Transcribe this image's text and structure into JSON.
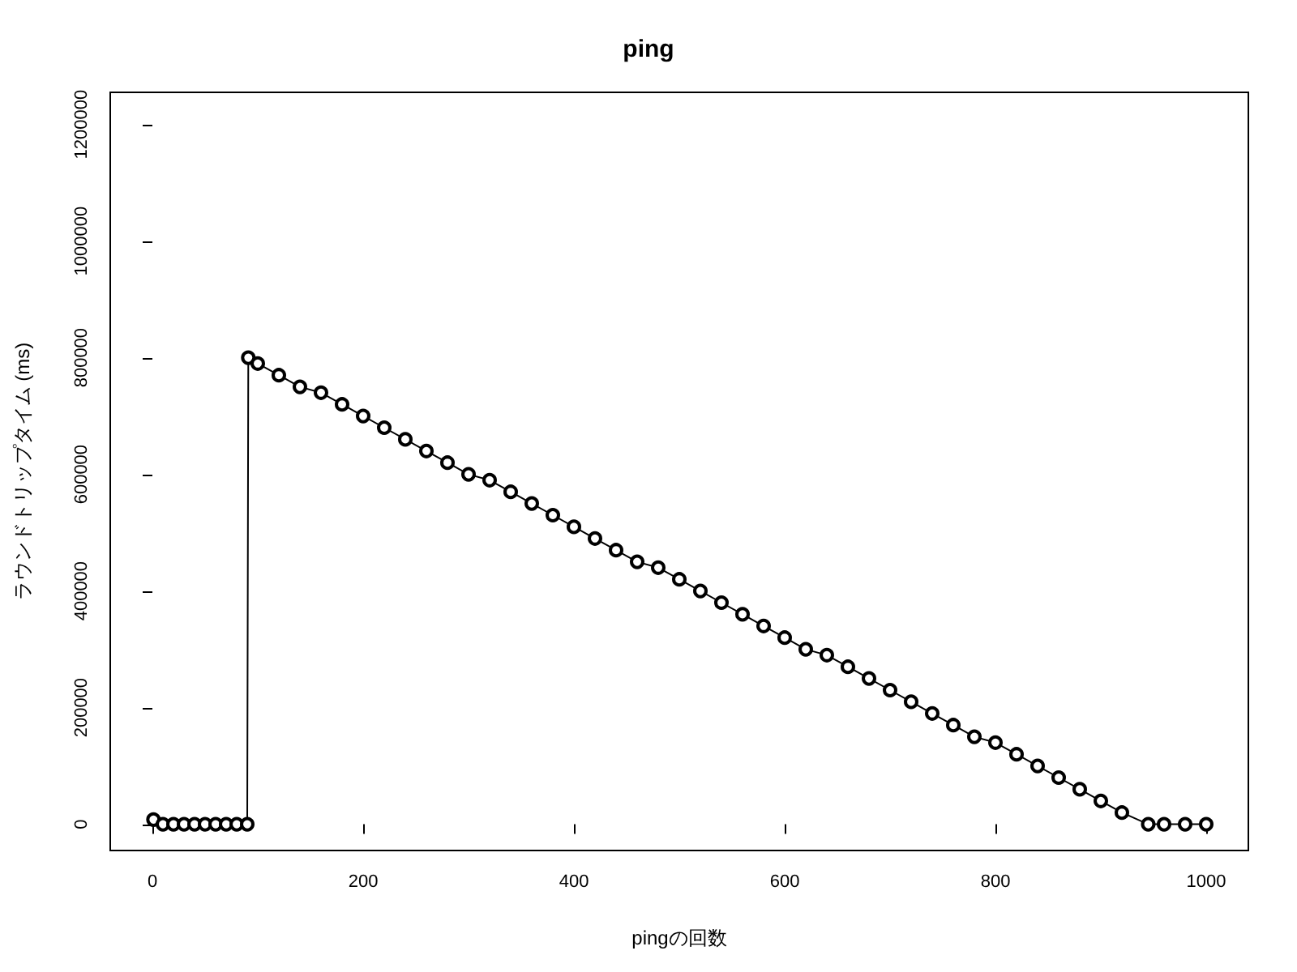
{
  "chart_data": {
    "type": "line",
    "title": "ping",
    "xlabel": "pingの回数",
    "ylabel": "ラウンドトリップタイム (ms)",
    "xlim": [
      -40,
      1040
    ],
    "xticks": [
      0,
      200,
      400,
      600,
      800,
      1000
    ],
    "ylim": [
      -45000,
      1255000
    ],
    "yticks": [
      0,
      200000,
      400000,
      600000,
      800000,
      1000000,
      1200000
    ],
    "grid": false,
    "marker": "circle",
    "line_style": "solid",
    "series": [
      {
        "color": "#000000",
        "x": [
          1,
          10,
          20,
          30,
          40,
          50,
          60,
          70,
          80,
          90,
          91,
          100,
          120,
          140,
          160,
          180,
          200,
          220,
          240,
          260,
          280,
          300,
          320,
          340,
          360,
          380,
          400,
          420,
          440,
          460,
          480,
          500,
          520,
          540,
          560,
          580,
          600,
          620,
          640,
          660,
          680,
          700,
          720,
          740,
          760,
          780,
          800,
          820,
          840,
          860,
          880,
          900,
          920,
          945,
          960,
          980,
          1000
        ],
        "values": [
          8000,
          0,
          0,
          0,
          0,
          0,
          0,
          0,
          0,
          0,
          800000,
          790000,
          770000,
          750000,
          740000,
          720000,
          700000,
          680000,
          660000,
          640000,
          620000,
          600000,
          590000,
          570000,
          550000,
          530000,
          510000,
          490000,
          470000,
          450000,
          440000,
          420000,
          400000,
          380000,
          360000,
          340000,
          320000,
          300000,
          290000,
          270000,
          250000,
          230000,
          210000,
          190000,
          170000,
          150000,
          140000,
          120000,
          100000,
          80000,
          60000,
          40000,
          20000,
          0,
          0,
          0,
          0
        ]
      }
    ]
  }
}
